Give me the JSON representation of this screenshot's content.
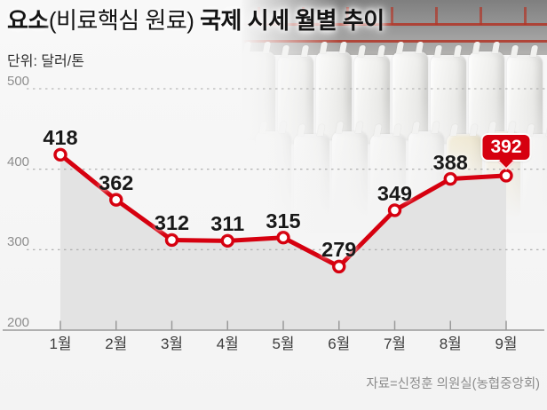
{
  "title": {
    "product": "요소",
    "paren": "(비료핵심 원료)",
    "rest": " 국제 시세 월별 추이"
  },
  "unit_label": "단위: 달러/톤",
  "source": "자료=신정훈 의원실(농협중앙회)",
  "chart_data": {
    "type": "line",
    "title": "요소 국제 시세 월별 추이",
    "categories": [
      "1월",
      "2월",
      "3월",
      "4월",
      "5월",
      "6월",
      "7월",
      "8월",
      "9월"
    ],
    "values": [
      418,
      362,
      312,
      311,
      315,
      279,
      349,
      388,
      392
    ],
    "unit": "달러/톤",
    "ylim": [
      200,
      500
    ],
    "yticks": [
      200,
      300,
      400,
      500
    ],
    "grid": "horizontal dotted gridlines at 300/400/500, solid baseline at 200",
    "legend": "none",
    "line_color": "#d6000f",
    "area_fill": "#e2e2e2",
    "marker": "white circle with red ring",
    "last_value_badge": {
      "value": 392,
      "bg": "#d6000f",
      "text_color": "#ffffff"
    }
  }
}
